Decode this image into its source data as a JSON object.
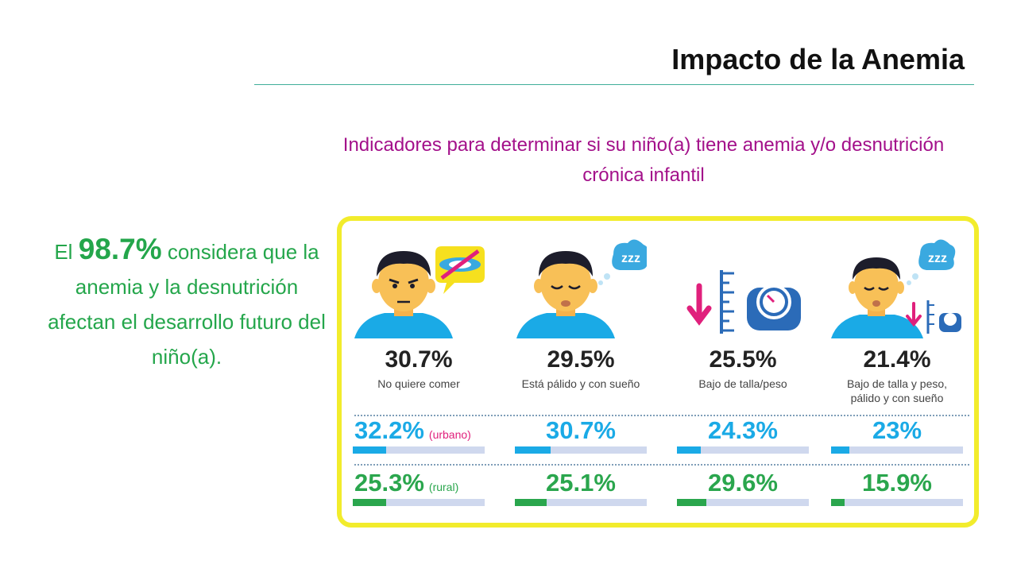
{
  "title": "Impacto de la Anemia",
  "subtitle": "Indicadores para determinar si su niño(a) tiene anemia y/o desnutrición crónica infantil",
  "left_text": {
    "pre": "El ",
    "highlight": "98.7%",
    "post": " considera que la anemia y la desnutrición afectan el desarrollo futuro del niño(a)."
  },
  "indicators": [
    {
      "icon": "angry-child-no-food-icon",
      "value": "30.7%",
      "label": "No quiere comer",
      "urban": {
        "value": "32.2%",
        "tag": "(urbano)",
        "fraction": 0.25
      },
      "rural": {
        "value": "25.3%",
        "tag": "(rural)",
        "fraction": 0.25
      }
    },
    {
      "icon": "pale-sleepy-child-icon",
      "value": "29.5%",
      "label": "Está pálido y con sueño",
      "urban": {
        "value": "30.7%",
        "fraction": 0.27
      },
      "rural": {
        "value": "25.1%",
        "fraction": 0.24
      }
    },
    {
      "icon": "height-weight-scale-icon",
      "value": "25.5%",
      "label": "Bajo de talla/peso",
      "urban": {
        "value": "24.3%",
        "fraction": 0.18
      },
      "rural": {
        "value": "29.6%",
        "fraction": 0.22
      }
    },
    {
      "icon": "pale-sleepy-child-low-weight-icon",
      "value": "21.4%",
      "label": "Bajo de talla y peso, pálido y con sueño",
      "urban": {
        "value": "23%",
        "fraction": 0.14
      },
      "rural": {
        "value": "15.9%",
        "fraction": 0.1
      }
    }
  ],
  "colors": {
    "title_rule": "#3fae9a",
    "subtitle": "#a3108a",
    "left_text": "#24a64b",
    "card_border": "#f2ec2c",
    "urban": "#1aaae6",
    "rural": "#2aa64d",
    "bar_track": "#cfd8ee"
  }
}
